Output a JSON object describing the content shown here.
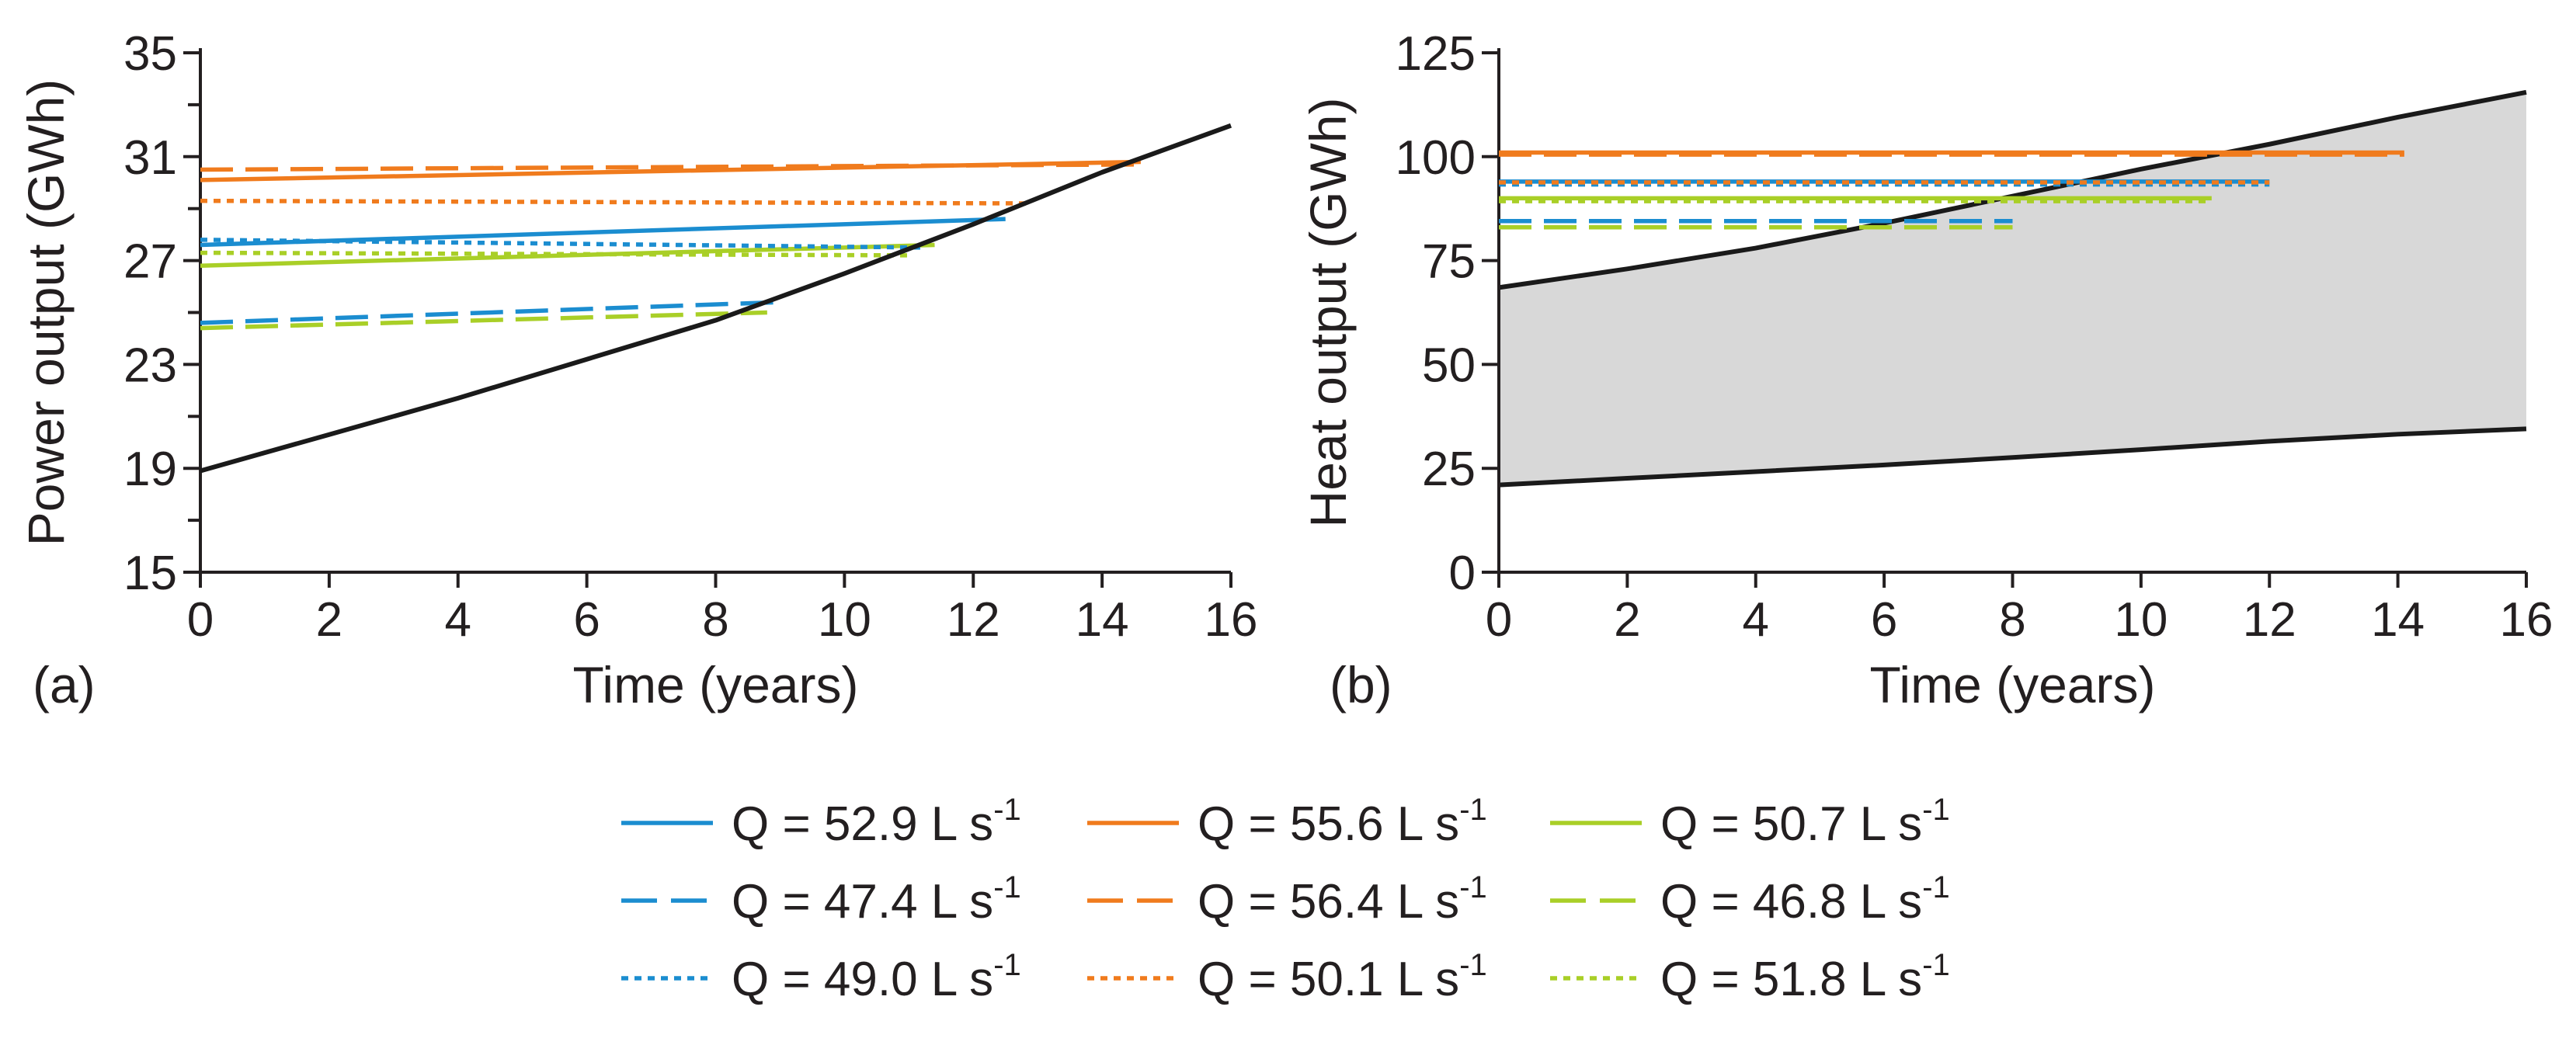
{
  "colors": {
    "blue": "#1b8dd0",
    "orange": "#f07b1d",
    "green": "#a9cf27",
    "black": "#1a1a1a",
    "shade": "#d8d8d8"
  },
  "legend": [
    {
      "key": "s1",
      "label": "Q = 52.9 L s",
      "sup": "-1",
      "color": "blue",
      "dash": "solid"
    },
    {
      "key": "s2",
      "label": "Q = 55.6 L s",
      "sup": "-1",
      "color": "orange",
      "dash": "solid"
    },
    {
      "key": "s3",
      "label": "Q = 50.7 L s",
      "sup": "-1",
      "color": "green",
      "dash": "solid"
    },
    {
      "key": "s4",
      "label": "Q = 47.4 L s",
      "sup": "-1",
      "color": "blue",
      "dash": "dashed"
    },
    {
      "key": "s5",
      "label": "Q = 56.4 L s",
      "sup": "-1",
      "color": "orange",
      "dash": "dashed"
    },
    {
      "key": "s6",
      "label": "Q = 46.8 L s",
      "sup": "-1",
      "color": "green",
      "dash": "dashed"
    },
    {
      "key": "s7",
      "label": "Q = 49.0 L s",
      "sup": "-1",
      "color": "blue",
      "dash": "dotted"
    },
    {
      "key": "s8",
      "label": "Q = 50.1 L s",
      "sup": "-1",
      "color": "orange",
      "dash": "dotted"
    },
    {
      "key": "s9",
      "label": "Q = 51.8 L s",
      "sup": "-1",
      "color": "green",
      "dash": "dotted"
    }
  ],
  "chart_data": [
    {
      "type": "line",
      "panel": "(a)",
      "xlabel": "Time (years)",
      "ylabel": "Power output (GWh)",
      "xlim": [
        0,
        16
      ],
      "ylim": [
        15,
        35
      ],
      "xticks": [
        0,
        2,
        4,
        6,
        8,
        10,
        12,
        14,
        16
      ],
      "yticks": [
        15,
        19,
        23,
        27,
        31,
        35
      ],
      "yminor": [
        17,
        21,
        25,
        29,
        33
      ],
      "grid": false,
      "series": [
        {
          "key": "s1",
          "color": "blue",
          "dash": "solid",
          "x": [
            0,
            12.5
          ],
          "y": [
            27.6,
            28.6
          ]
        },
        {
          "key": "s2",
          "color": "orange",
          "dash": "solid",
          "x": [
            0,
            14.6
          ],
          "y": [
            30.1,
            30.8
          ]
        },
        {
          "key": "s3",
          "color": "green",
          "dash": "solid",
          "x": [
            0,
            11.4
          ],
          "y": [
            26.8,
            27.6
          ]
        },
        {
          "key": "s4",
          "color": "blue",
          "dash": "dashed",
          "x": [
            0,
            9.0
          ],
          "y": [
            24.6,
            25.4
          ]
        },
        {
          "key": "s5",
          "color": "orange",
          "dash": "dashed",
          "x": [
            0,
            14.6
          ],
          "y": [
            30.5,
            30.7
          ]
        },
        {
          "key": "s6",
          "color": "green",
          "dash": "dashed",
          "x": [
            0,
            8.8
          ],
          "y": [
            24.4,
            25.0
          ]
        },
        {
          "key": "s7",
          "color": "blue",
          "dash": "dotted",
          "x": [
            0,
            11.2
          ],
          "y": [
            27.8,
            27.5
          ]
        },
        {
          "key": "s8",
          "color": "orange",
          "dash": "dotted",
          "x": [
            0,
            12.9
          ],
          "y": [
            29.3,
            29.2
          ]
        },
        {
          "key": "s9",
          "color": "green",
          "dash": "dotted",
          "x": [
            0,
            11.0
          ],
          "y": [
            27.3,
            27.2
          ]
        },
        {
          "key": "limit",
          "color": "black",
          "dash": "solid",
          "x": [
            0,
            2,
            4,
            6,
            8,
            10,
            12,
            14,
            16
          ],
          "y": [
            18.9,
            20.3,
            21.7,
            23.2,
            24.7,
            26.5,
            28.4,
            30.4,
            32.2
          ]
        }
      ]
    },
    {
      "type": "area",
      "panel": "(b)",
      "xlabel": "Time (years)",
      "ylabel": "Heat output (GWh)",
      "xlim": [
        0,
        16
      ],
      "ylim": [
        0,
        125
      ],
      "xticks": [
        0,
        2,
        4,
        6,
        8,
        10,
        12,
        14,
        16
      ],
      "yticks": [
        0,
        25,
        50,
        75,
        100,
        125
      ],
      "grid": false,
      "band": {
        "x": [
          0,
          2,
          4,
          6,
          8,
          10,
          12,
          14,
          16
        ],
        "lower": [
          21,
          22.6,
          24.2,
          25.8,
          27.6,
          29.5,
          31.5,
          33.2,
          34.5
        ],
        "upper": [
          68.5,
          73,
          78,
          84,
          90.5,
          97,
          103,
          109.5,
          115.5
        ]
      },
      "series": [
        {
          "key": "s1",
          "color": "blue",
          "dash": "solid",
          "x": [
            0,
            12.0
          ],
          "y": [
            94,
            94
          ]
        },
        {
          "key": "s2",
          "color": "orange",
          "dash": "solid",
          "x": [
            0,
            14.1
          ],
          "y": [
            101,
            101
          ]
        },
        {
          "key": "s3",
          "color": "green",
          "dash": "solid",
          "x": [
            0,
            11.1
          ],
          "y": [
            90,
            90
          ]
        },
        {
          "key": "s4",
          "color": "blue",
          "dash": "dashed",
          "x": [
            0,
            8.0
          ],
          "y": [
            84.5,
            84.5
          ]
        },
        {
          "key": "s5",
          "color": "orange",
          "dash": "dashed",
          "x": [
            0,
            14.1
          ],
          "y": [
            100.5,
            100.5
          ]
        },
        {
          "key": "s6",
          "color": "green",
          "dash": "dashed",
          "x": [
            0,
            8.0
          ],
          "y": [
            83,
            83
          ]
        },
        {
          "key": "s7",
          "color": "blue",
          "dash": "dotted",
          "x": [
            0,
            12.0
          ],
          "y": [
            93.3,
            93.3
          ]
        },
        {
          "key": "s8",
          "color": "orange",
          "dash": "dotted",
          "x": [
            0,
            12.0
          ],
          "y": [
            93.8,
            93.8
          ]
        },
        {
          "key": "s9",
          "color": "green",
          "dash": "dotted",
          "x": [
            0,
            11.1
          ],
          "y": [
            89.3,
            89.3
          ]
        }
      ]
    }
  ]
}
